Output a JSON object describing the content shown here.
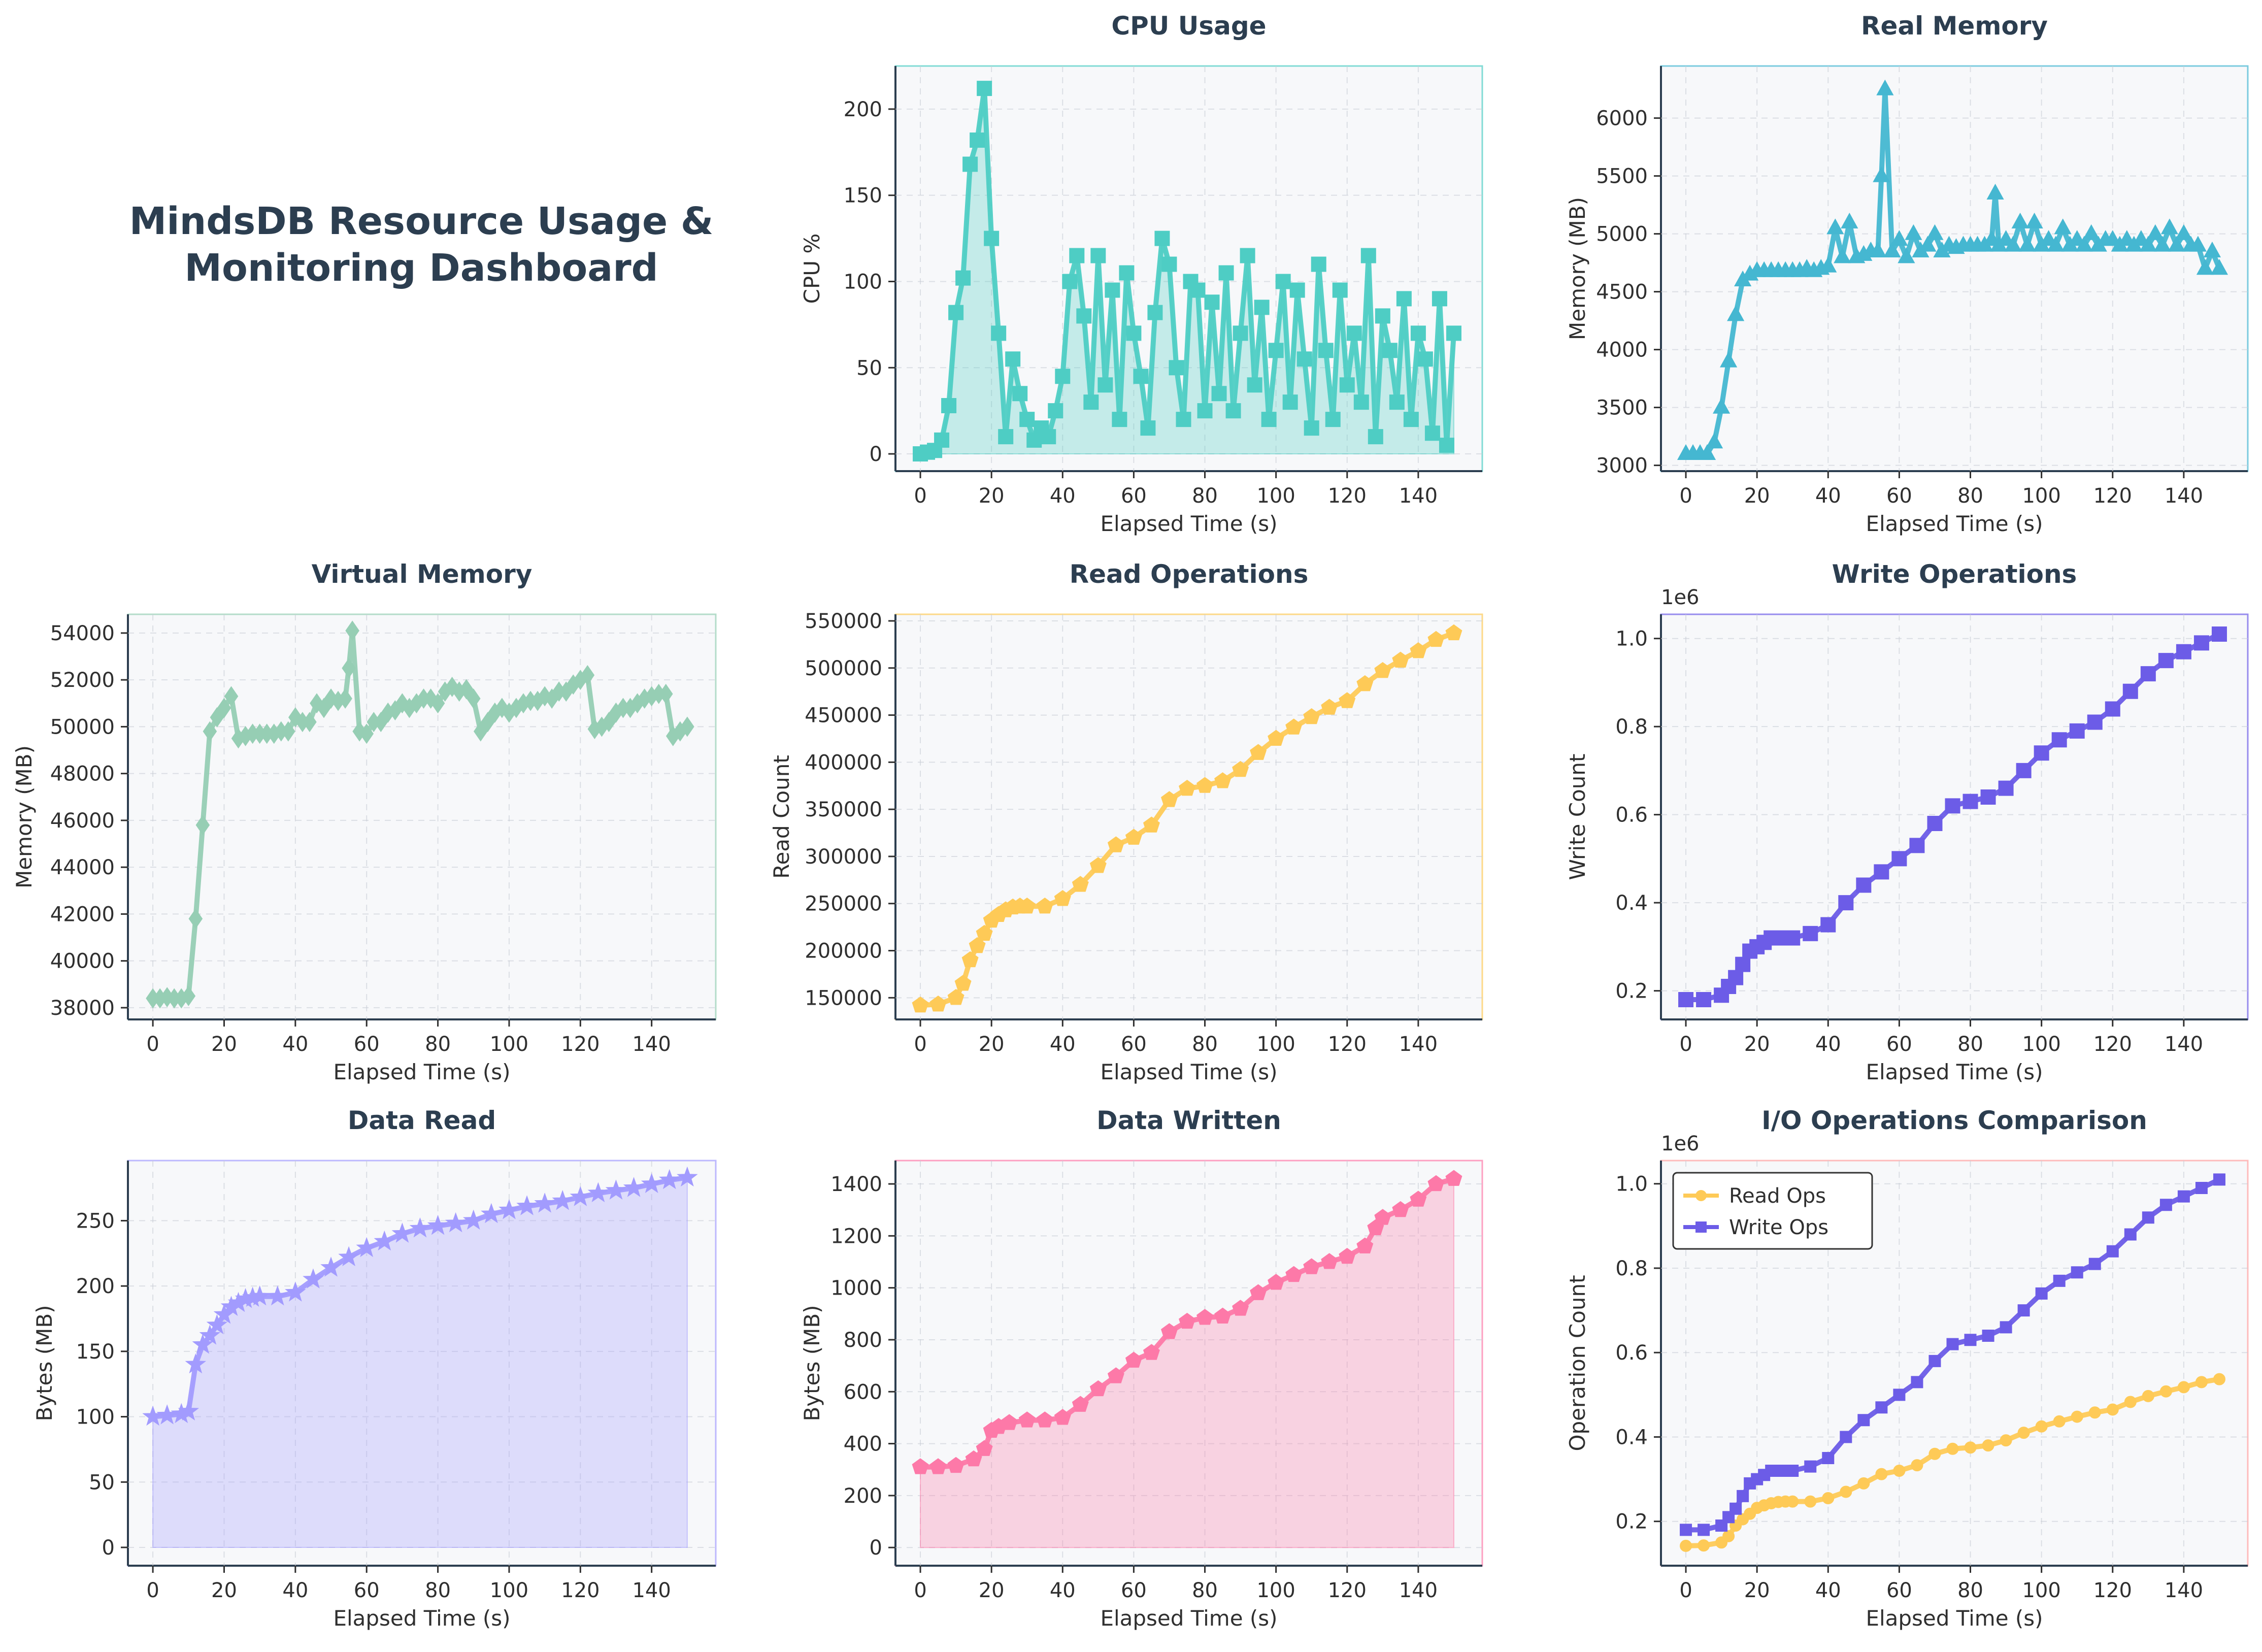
{
  "dashboard": {
    "title_line1": "MindsDB Resource Usage &",
    "title_line2": "Monitoring Dashboard"
  },
  "chart_data": [
    {
      "id": "cpu",
      "type": "area",
      "title": "CPU Usage",
      "xlabel": "Elapsed Time (s)",
      "ylabel": "CPU %",
      "xlim": [
        -7,
        158
      ],
      "ylim": [
        -10,
        225
      ],
      "xticks": [
        0,
        20,
        40,
        60,
        80,
        100,
        120,
        140
      ],
      "yticks": [
        0,
        50,
        100,
        150,
        200
      ],
      "color": "#4ecdc4",
      "marker": "square",
      "fill": true,
      "grid": true,
      "x": [
        0,
        2,
        4,
        6,
        8,
        10,
        12,
        14,
        16,
        18,
        20,
        22,
        24,
        26,
        28,
        30,
        32,
        34,
        36,
        38,
        40,
        42,
        44,
        46,
        48,
        50,
        52,
        54,
        56,
        58,
        60,
        62,
        64,
        66,
        68,
        70,
        72,
        74,
        76,
        78,
        80,
        82,
        84,
        86,
        88,
        90,
        92,
        94,
        96,
        98,
        100,
        102,
        104,
        106,
        108,
        110,
        112,
        114,
        116,
        118,
        120,
        122,
        124,
        126,
        128,
        130,
        132,
        134,
        136,
        138,
        140,
        142,
        144,
        146,
        148,
        150
      ],
      "y": [
        0,
        1,
        2,
        8,
        28,
        82,
        102,
        168,
        182,
        212,
        125,
        70,
        10,
        55,
        35,
        20,
        8,
        15,
        10,
        25,
        45,
        100,
        115,
        80,
        30,
        115,
        40,
        95,
        20,
        105,
        70,
        45,
        15,
        82,
        125,
        110,
        50,
        20,
        100,
        95,
        25,
        88,
        35,
        105,
        25,
        70,
        115,
        40,
        85,
        20,
        60,
        100,
        30,
        95,
        55,
        15,
        110,
        60,
        20,
        95,
        40,
        70,
        30,
        115,
        10,
        80,
        60,
        30,
        90,
        20,
        70,
        55,
        12,
        90,
        5,
        70
      ],
      "values_note": null
    },
    {
      "id": "realmem",
      "type": "line",
      "title": "Real Memory",
      "xlabel": "Elapsed Time (s)",
      "ylabel": "Memory (MB)",
      "xlim": [
        -7,
        158
      ],
      "ylim": [
        2950,
        6450
      ],
      "xticks": [
        0,
        20,
        40,
        60,
        80,
        100,
        120,
        140
      ],
      "yticks": [
        3000,
        3500,
        4000,
        4500,
        5000,
        5500,
        6000
      ],
      "color": "#45b7d1",
      "marker": "triangle",
      "fill": false,
      "grid": true,
      "x": [
        0,
        2,
        4,
        6,
        8,
        10,
        12,
        14,
        16,
        18,
        20,
        22,
        24,
        26,
        28,
        30,
        32,
        34,
        36,
        38,
        40,
        42,
        44,
        46,
        48,
        50,
        52,
        54,
        55,
        56,
        58,
        60,
        62,
        64,
        66,
        68,
        70,
        72,
        74,
        76,
        78,
        80,
        82,
        84,
        86,
        87,
        88,
        90,
        92,
        94,
        96,
        98,
        100,
        102,
        104,
        106,
        108,
        110,
        112,
        114,
        116,
        118,
        120,
        122,
        124,
        126,
        128,
        130,
        132,
        134,
        136,
        138,
        140,
        142,
        144,
        146,
        148,
        150
      ],
      "y": [
        3100,
        3100,
        3100,
        3100,
        3200,
        3500,
        3900,
        4300,
        4600,
        4650,
        4680,
        4680,
        4680,
        4680,
        4680,
        4680,
        4680,
        4700,
        4680,
        4700,
        4720,
        5050,
        4800,
        5100,
        4800,
        4820,
        4850,
        4850,
        5500,
        6250,
        4850,
        4950,
        4800,
        5000,
        4850,
        4900,
        5000,
        4850,
        4900,
        4880,
        4900,
        4900,
        4900,
        4900,
        4950,
        5350,
        4900,
        4950,
        4900,
        5100,
        4900,
        5100,
        4900,
        4950,
        4900,
        5050,
        4900,
        4950,
        4900,
        5000,
        4900,
        4950,
        4950,
        4900,
        4950,
        4900,
        4950,
        4900,
        5000,
        4900,
        5050,
        4900,
        5000,
        4900,
        4900,
        4700,
        4850,
        4700
      ],
      "values_note": null
    },
    {
      "id": "virtmem",
      "type": "line",
      "title": "Virtual Memory",
      "xlabel": "Elapsed Time (s)",
      "ylabel": "Memory (MB)",
      "xlim": [
        -7,
        158
      ],
      "ylim": [
        37500,
        54800
      ],
      "xticks": [
        0,
        20,
        40,
        60,
        80,
        100,
        120,
        140
      ],
      "yticks": [
        38000,
        40000,
        42000,
        44000,
        46000,
        48000,
        50000,
        52000,
        54000
      ],
      "color": "#96ceb4",
      "marker": "diamond",
      "fill": false,
      "grid": true,
      "x": [
        0,
        2,
        4,
        6,
        8,
        10,
        12,
        14,
        16,
        18,
        20,
        22,
        24,
        26,
        28,
        30,
        32,
        34,
        36,
        38,
        40,
        42,
        44,
        46,
        48,
        50,
        52,
        54,
        55,
        56,
        58,
        60,
        62,
        64,
        66,
        68,
        70,
        72,
        74,
        76,
        78,
        80,
        82,
        84,
        86,
        88,
        90,
        92,
        94,
        96,
        98,
        100,
        102,
        104,
        106,
        108,
        110,
        112,
        114,
        116,
        118,
        120,
        122,
        124,
        126,
        128,
        130,
        132,
        134,
        136,
        138,
        140,
        142,
        144,
        146,
        148,
        150
      ],
      "y": [
        38400,
        38400,
        38450,
        38400,
        38400,
        38500,
        41800,
        45800,
        49800,
        50400,
        50800,
        51300,
        49500,
        49600,
        49700,
        49700,
        49700,
        49700,
        49800,
        49800,
        50400,
        50200,
        50200,
        51000,
        50800,
        51200,
        51100,
        51200,
        52500,
        54100,
        49800,
        49700,
        50200,
        50200,
        50600,
        50700,
        51000,
        50800,
        51000,
        51200,
        51200,
        51000,
        51500,
        51700,
        51500,
        51600,
        51200,
        49800,
        50200,
        50600,
        50800,
        50600,
        50800,
        51000,
        51100,
        51100,
        51300,
        51200,
        51500,
        51500,
        51800,
        52000,
        52200,
        49900,
        50000,
        50200,
        50600,
        50800,
        50800,
        51000,
        51200,
        51300,
        51400,
        51400,
        49600,
        49800,
        50000
      ],
      "values_note": null
    },
    {
      "id": "readops",
      "type": "line",
      "title": "Read Operations",
      "xlabel": "Elapsed Time (s)",
      "ylabel": "Read Count",
      "xlim": [
        -7,
        158
      ],
      "ylim": [
        127000,
        557000
      ],
      "xticks": [
        0,
        20,
        40,
        60,
        80,
        100,
        120,
        140
      ],
      "yticks": [
        150000,
        200000,
        250000,
        300000,
        350000,
        400000,
        450000,
        500000,
        550000
      ],
      "color": "#feca57",
      "marker": "pentagon",
      "fill": false,
      "grid": true,
      "x": [
        0,
        5,
        10,
        12,
        14,
        16,
        18,
        20,
        22,
        24,
        26,
        28,
        30,
        35,
        40,
        45,
        50,
        55,
        60,
        65,
        70,
        75,
        80,
        85,
        90,
        95,
        100,
        105,
        110,
        115,
        120,
        125,
        130,
        135,
        140,
        145,
        150
      ],
      "y": [
        142000,
        143000,
        150000,
        165000,
        190000,
        205000,
        218000,
        232000,
        238000,
        243000,
        246000,
        247000,
        247000,
        247000,
        255000,
        270000,
        290000,
        312000,
        320000,
        333000,
        360000,
        372000,
        375000,
        380000,
        392000,
        410000,
        425000,
        437000,
        448000,
        458000,
        465000,
        483000,
        497000,
        508000,
        518000,
        530000,
        537000
      ],
      "values_note": null
    },
    {
      "id": "writeops",
      "type": "line",
      "title": "Write Operations",
      "xlabel": "Elapsed Time (s)",
      "ylabel": "Write Count",
      "xlim": [
        -7,
        158
      ],
      "ylim": [
        0.135,
        1.055
      ],
      "offset_label": "1e6",
      "xticks": [
        0,
        20,
        40,
        60,
        80,
        100,
        120,
        140
      ],
      "yticks": [
        0.2,
        0.4,
        0.6,
        0.8,
        1.0
      ],
      "ytick_labels": [
        "0.2",
        "0.4",
        "0.6",
        "0.8",
        "1.0"
      ],
      "color": "#6c5ce7",
      "marker": "square",
      "fill": false,
      "grid": true,
      "x": [
        0,
        5,
        10,
        12,
        14,
        16,
        18,
        20,
        22,
        24,
        26,
        28,
        30,
        35,
        40,
        45,
        50,
        55,
        60,
        65,
        70,
        75,
        80,
        85,
        90,
        95,
        100,
        105,
        110,
        115,
        120,
        125,
        130,
        135,
        140,
        145,
        150
      ],
      "y": [
        0.18,
        0.18,
        0.19,
        0.21,
        0.23,
        0.26,
        0.29,
        0.3,
        0.31,
        0.32,
        0.32,
        0.32,
        0.32,
        0.33,
        0.35,
        0.4,
        0.44,
        0.47,
        0.5,
        0.53,
        0.58,
        0.62,
        0.63,
        0.64,
        0.66,
        0.7,
        0.74,
        0.77,
        0.79,
        0.81,
        0.84,
        0.88,
        0.92,
        0.95,
        0.97,
        0.99,
        1.01
      ],
      "values_note": null
    },
    {
      "id": "dataread",
      "type": "area",
      "title": "Data Read",
      "xlabel": "Elapsed Time (s)",
      "ylabel": "Bytes (MB)",
      "xlim": [
        -7,
        158
      ],
      "ylim": [
        -14,
        296
      ],
      "xticks": [
        0,
        20,
        40,
        60,
        80,
        100,
        120,
        140
      ],
      "yticks": [
        0,
        50,
        100,
        150,
        200,
        250
      ],
      "color": "#a29bfe",
      "marker": "star",
      "fill": true,
      "grid": true,
      "x": [
        0,
        4,
        8,
        10,
        12,
        14,
        16,
        18,
        20,
        22,
        24,
        26,
        28,
        30,
        35,
        40,
        45,
        50,
        55,
        60,
        65,
        70,
        75,
        80,
        85,
        90,
        95,
        100,
        105,
        110,
        115,
        120,
        125,
        130,
        135,
        140,
        145,
        150
      ],
      "y": [
        100,
        101,
        102,
        104,
        140,
        155,
        162,
        170,
        178,
        184,
        187,
        190,
        191,
        192,
        192,
        195,
        205,
        214,
        222,
        229,
        234,
        240,
        244,
        246,
        248,
        250,
        255,
        258,
        261,
        263,
        265,
        268,
        271,
        273,
        275,
        278,
        281,
        283
      ],
      "values_note": null
    },
    {
      "id": "datawritten",
      "type": "area",
      "title": "Data Written",
      "xlabel": "Elapsed Time (s)",
      "ylabel": "Bytes (MB)",
      "xlim": [
        -7,
        158
      ],
      "ylim": [
        -70,
        1490
      ],
      "xticks": [
        0,
        20,
        40,
        60,
        80,
        100,
        120,
        140
      ],
      "yticks": [
        0,
        200,
        400,
        600,
        800,
        1000,
        1200,
        1400
      ],
      "color": "#fd79a8",
      "marker": "pentagon",
      "fill": true,
      "grid": true,
      "x": [
        0,
        5,
        10,
        15,
        18,
        20,
        22,
        25,
        30,
        35,
        40,
        45,
        50,
        55,
        60,
        65,
        70,
        75,
        80,
        85,
        90,
        95,
        100,
        105,
        110,
        115,
        120,
        125,
        128,
        130,
        135,
        140,
        145,
        150
      ],
      "y": [
        310,
        310,
        315,
        340,
        380,
        450,
        465,
        480,
        490,
        490,
        500,
        550,
        610,
        660,
        720,
        750,
        830,
        870,
        885,
        890,
        920,
        980,
        1020,
        1050,
        1080,
        1100,
        1120,
        1160,
        1230,
        1270,
        1300,
        1340,
        1400,
        1420
      ],
      "values_note": null
    },
    {
      "id": "iocompare",
      "type": "line",
      "title": "I/O Operations Comparison",
      "xlabel": "Elapsed Time (s)",
      "ylabel": "Operation Count",
      "xlim": [
        -7,
        158
      ],
      "ylim": [
        0.095,
        1.055
      ],
      "offset_label": "1e6",
      "xticks": [
        0,
        20,
        40,
        60,
        80,
        100,
        120,
        140
      ],
      "yticks": [
        0.2,
        0.4,
        0.6,
        0.8,
        1.0
      ],
      "ytick_labels": [
        "0.2",
        "0.4",
        "0.6",
        "0.8",
        "1.0"
      ],
      "legend": "top-left",
      "grid": true,
      "series": [
        {
          "name": "Read Ops",
          "color": "#feca57",
          "marker": "circle",
          "x": [
            0,
            5,
            10,
            12,
            14,
            16,
            18,
            20,
            22,
            24,
            26,
            28,
            30,
            35,
            40,
            45,
            50,
            55,
            60,
            65,
            70,
            75,
            80,
            85,
            90,
            95,
            100,
            105,
            110,
            115,
            120,
            125,
            130,
            135,
            140,
            145,
            150
          ],
          "y": [
            0.142,
            0.143,
            0.15,
            0.165,
            0.19,
            0.205,
            0.218,
            0.232,
            0.238,
            0.243,
            0.246,
            0.247,
            0.247,
            0.247,
            0.255,
            0.27,
            0.29,
            0.312,
            0.32,
            0.333,
            0.36,
            0.372,
            0.375,
            0.38,
            0.392,
            0.41,
            0.425,
            0.437,
            0.448,
            0.458,
            0.465,
            0.483,
            0.497,
            0.508,
            0.518,
            0.53,
            0.537
          ]
        },
        {
          "name": "Write Ops",
          "color": "#6c5ce7",
          "marker": "square",
          "x": [
            0,
            5,
            10,
            12,
            14,
            16,
            18,
            20,
            22,
            24,
            26,
            28,
            30,
            35,
            40,
            45,
            50,
            55,
            60,
            65,
            70,
            75,
            80,
            85,
            90,
            95,
            100,
            105,
            110,
            115,
            120,
            125,
            130,
            135,
            140,
            145,
            150
          ],
          "y": [
            0.18,
            0.18,
            0.19,
            0.21,
            0.23,
            0.26,
            0.29,
            0.3,
            0.31,
            0.32,
            0.32,
            0.32,
            0.32,
            0.33,
            0.35,
            0.4,
            0.44,
            0.47,
            0.5,
            0.53,
            0.58,
            0.62,
            0.63,
            0.64,
            0.66,
            0.7,
            0.74,
            0.77,
            0.79,
            0.81,
            0.84,
            0.88,
            0.92,
            0.95,
            0.97,
            0.99,
            1.01
          ]
        }
      ]
    }
  ]
}
